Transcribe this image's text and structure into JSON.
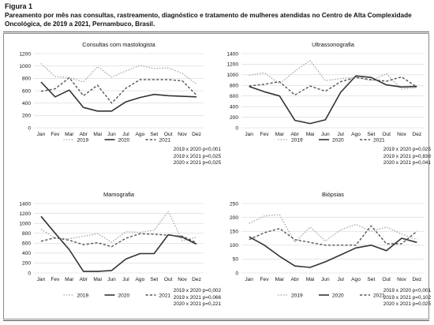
{
  "figure": {
    "label": "Figura 1",
    "caption": "Pareamento por mês nas consultas, rastreamento, diagnóstico e tratamento de mulheres atendidas no Centro de Alta Complexidade Oncológica, de 2019 a 2021, Pernambuco, Brasil."
  },
  "colors": {
    "2019": "#a9a9a9",
    "2020": "#333333",
    "2021": "#555555",
    "grid": "#d6d6d6"
  },
  "chart_data": [
    {
      "id": "consultas",
      "type": "line",
      "title": "Consultas com mastologista",
      "categories": [
        "Jan",
        "Fev",
        "Mar",
        "Abr",
        "Mai",
        "Jun",
        "Jul",
        "Ago",
        "Set",
        "Out",
        "Nov",
        "Dez"
      ],
      "yticks": [
        0,
        200,
        400,
        600,
        800,
        1000,
        1200
      ],
      "ylim": [
        0,
        1200
      ],
      "grid": true,
      "legend": "bottom",
      "series": [
        {
          "name": "2019",
          "style": "dotted",
          "values": [
            1040,
            830,
            810,
            740,
            990,
            820,
            920,
            1010,
            960,
            970,
            880,
            710
          ]
        },
        {
          "name": "2020",
          "style": "solid",
          "values": [
            740,
            500,
            610,
            330,
            270,
            270,
            420,
            490,
            540,
            520,
            510,
            500
          ]
        },
        {
          "name": "2021",
          "style": "dashed",
          "values": [
            590,
            630,
            810,
            520,
            690,
            400,
            640,
            780,
            780,
            780,
            760,
            530
          ]
        }
      ],
      "stats": [
        "2019 x 2020 p<0,001",
        "2019 x 2021 p=0,025",
        "2020 x 2021 p=0,025"
      ]
    },
    {
      "id": "ultrassonografia",
      "type": "line",
      "title": "Ultrassonografia",
      "categories": [
        "Jan",
        "Fev",
        "Mar",
        "Abr",
        "Mai",
        "Jun",
        "Jul",
        "Ago",
        "Set",
        "Out",
        "Nov",
        "Dez"
      ],
      "yticks": [
        0,
        200,
        400,
        600,
        800,
        1000,
        1200,
        1400
      ],
      "ylim": [
        0,
        1400
      ],
      "grid": true,
      "legend": "bottom",
      "series": [
        {
          "name": "2019",
          "style": "dotted",
          "values": [
            990,
            1040,
            830,
            1070,
            1270,
            890,
            930,
            950,
            890,
            1020,
            730,
            760
          ]
        },
        {
          "name": "2020",
          "style": "solid",
          "values": [
            780,
            680,
            600,
            140,
            80,
            150,
            670,
            980,
            950,
            810,
            770,
            780
          ]
        },
        {
          "name": "2021",
          "style": "dashed",
          "values": [
            790,
            820,
            870,
            620,
            790,
            690,
            870,
            950,
            910,
            880,
            960,
            770
          ]
        }
      ],
      "stats": [
        "2019 x 2020 p=0,025",
        "2019 x 2021 p=0,836",
        "2020 x 2021 p=0,041"
      ]
    },
    {
      "id": "mamografia",
      "type": "line",
      "title": "Mamografia",
      "categories": [
        "Jan",
        "Fev",
        "Mar",
        "Abr",
        "Mai",
        "Jun",
        "Jul",
        "Ago",
        "Set",
        "Out",
        "Nov",
        "Dez"
      ],
      "yticks": [
        0,
        200,
        400,
        600,
        800,
        1000,
        1200,
        1400
      ],
      "ylim": [
        0,
        1400
      ],
      "grid": true,
      "legend": "bottom",
      "series": [
        {
          "name": "2019",
          "style": "dotted",
          "values": [
            880,
            700,
            690,
            740,
            790,
            620,
            830,
            820,
            860,
            1240,
            650,
            720
          ]
        },
        {
          "name": "2020",
          "style": "solid",
          "values": [
            1140,
            800,
            470,
            30,
            30,
            50,
            280,
            390,
            390,
            770,
            720,
            580
          ]
        },
        {
          "name": "2021",
          "style": "dashed",
          "values": [
            640,
            710,
            660,
            570,
            610,
            530,
            700,
            790,
            780,
            760,
            740,
            610
          ]
        }
      ],
      "stats": [
        "2019 x 2020 p=0,002",
        "2019 x 2021 p=0,066",
        "2020 x 2021 p=0,221"
      ]
    },
    {
      "id": "biopsias",
      "type": "line",
      "title": "Biópsias",
      "categories": [
        "Jan",
        "Fev",
        "Mar",
        "Abr",
        "Mai",
        "Jun",
        "Jul",
        "Ago",
        "Set",
        "Out",
        "Nov",
        "Dez"
      ],
      "yticks": [
        0,
        50,
        100,
        150,
        200,
        250
      ],
      "ylim": [
        0,
        250
      ],
      "grid": true,
      "legend": "bottom",
      "series": [
        {
          "name": "2019",
          "style": "dotted",
          "values": [
            178,
            205,
            210,
            110,
            165,
            115,
            155,
            175,
            150,
            165,
            140,
            120
          ]
        },
        {
          "name": "2020",
          "style": "solid",
          "values": [
            130,
            100,
            60,
            25,
            20,
            40,
            65,
            90,
            100,
            80,
            125,
            110
          ]
        },
        {
          "name": "2021",
          "style": "dashed",
          "values": [
            120,
            145,
            160,
            120,
            110,
            100,
            100,
            100,
            170,
            105,
            105,
            150
          ]
        }
      ],
      "stats": [
        "2019 x 2020 p<0,001",
        "2019 x 2021 p=0,102",
        "2020 x 2021 p=0,025"
      ]
    }
  ]
}
